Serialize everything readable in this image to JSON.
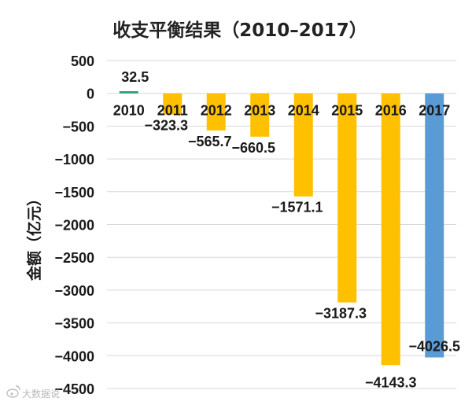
{
  "chart_data": {
    "type": "bar",
    "title": "收支平衡结果（2010–2017）",
    "ylabel": "金额（亿元）",
    "xlabel": "",
    "categories": [
      "2010",
      "2011",
      "2012",
      "2013",
      "2014",
      "2015",
      "2016",
      "2017"
    ],
    "values": [
      32.5,
      -323.3,
      -565.7,
      -660.5,
      -1571.1,
      -3187.3,
      -4143.3,
      -4026.5
    ],
    "value_labels": [
      "32.5",
      "−323.3",
      "−565.7",
      "−660.5",
      "−1571.1",
      "−3187.3",
      "−4143.3",
      "−4026.5"
    ],
    "bar_colors": [
      "#2e9e73",
      "#ffc000",
      "#ffc000",
      "#ffc000",
      "#ffc000",
      "#ffc000",
      "#ffc000",
      "#5b9bd5"
    ],
    "ylim": [
      -4500,
      500
    ],
    "yticks": [
      500,
      0,
      -500,
      -1000,
      -1500,
      -2000,
      -2500,
      -3000,
      -3500,
      -4000,
      -4500
    ],
    "ytick_labels": [
      "500",
      "0",
      "−500",
      "−1000",
      "−1500",
      "−2000",
      "−2500",
      "−3000",
      "−3500",
      "−4000",
      "−4500"
    ],
    "grid": true,
    "legend": "none"
  },
  "watermark": {
    "text": "大数据说",
    "icon": "weibo-icon"
  }
}
